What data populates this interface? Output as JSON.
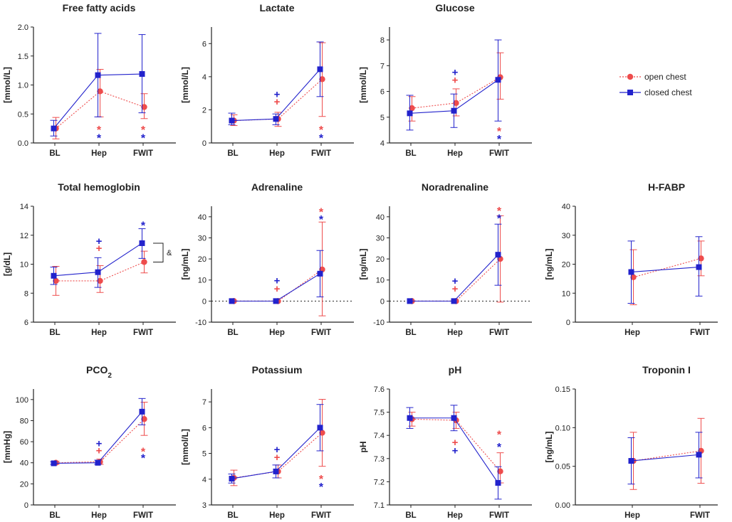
{
  "figure": {
    "legend": {
      "position": "top-right",
      "entries": [
        {
          "name": "open chest",
          "color": "#ee4c4c",
          "marker": "circle",
          "line": "dotted"
        },
        {
          "name": "closed chest",
          "color": "#2222cc",
          "marker": "square",
          "line": "solid"
        }
      ]
    },
    "bracket_label": "&"
  },
  "chart_data": [
    {
      "type": "line",
      "title": "Free fatty acids",
      "ylabel": "[mmol/L]",
      "categories": [
        "BL",
        "Hep",
        "FWIT"
      ],
      "ylim": [
        0,
        2.0
      ],
      "yticks": [
        "0.0",
        "0.5",
        "1.0",
        "1.5",
        "2.0"
      ],
      "series": [
        {
          "name": "open chest",
          "values": [
            0.25,
            0.89,
            0.62
          ],
          "err_low": [
            0.07,
            0.45,
            0.42
          ],
          "err_high": [
            0.44,
            1.27,
            0.85
          ]
        },
        {
          "name": "closed chest",
          "values": [
            0.25,
            1.17,
            1.19
          ],
          "err_low": [
            0.12,
            0.45,
            0.52
          ],
          "err_high": [
            0.39,
            1.89,
            1.87
          ]
        }
      ],
      "annotations": [
        {
          "ci": 1,
          "y": 0.27,
          "text": "*",
          "color": "#ee4c4c"
        },
        {
          "ci": 1,
          "y": 0.13,
          "text": "*",
          "color": "#2222cc"
        },
        {
          "ci": 2,
          "y": 0.27,
          "text": "*",
          "color": "#ee4c4c"
        },
        {
          "ci": 2,
          "y": 0.13,
          "text": "*",
          "color": "#2222cc"
        }
      ]
    },
    {
      "type": "line",
      "title": "Lactate",
      "ylabel": "[mmol/L]",
      "categories": [
        "BL",
        "Hep",
        "FWIT"
      ],
      "ylim": [
        0,
        7
      ],
      "yticks": [
        "0",
        "2",
        "4",
        "6"
      ],
      "series": [
        {
          "name": "open chest",
          "values": [
            1.35,
            1.45,
            3.85
          ],
          "err_low": [
            1.05,
            1.0,
            1.6
          ],
          "err_high": [
            1.7,
            1.85,
            6.05
          ]
        },
        {
          "name": "closed chest",
          "values": [
            1.35,
            1.45,
            4.45
          ],
          "err_low": [
            1.1,
            1.1,
            2.8
          ],
          "err_high": [
            1.8,
            1.75,
            6.1
          ]
        }
      ],
      "annotations": [
        {
          "ci": 1,
          "y": 2.95,
          "text": "+",
          "color": "#2222cc"
        },
        {
          "ci": 1,
          "y": 2.5,
          "text": "+",
          "color": "#ee4c4c"
        },
        {
          "ci": 2,
          "y": 0.95,
          "text": "*",
          "color": "#ee4c4c"
        },
        {
          "ci": 2,
          "y": 0.45,
          "text": "*",
          "color": "#2222cc"
        }
      ]
    },
    {
      "type": "line",
      "title": "Glucose",
      "ylabel": "[mmol/L]",
      "categories": [
        "BL",
        "Hep",
        "FWIT"
      ],
      "ylim": [
        4,
        8.5
      ],
      "yticks": [
        "4",
        "5",
        "6",
        "7",
        "8"
      ],
      "series": [
        {
          "name": "open chest",
          "values": [
            5.35,
            5.55,
            6.55
          ],
          "err_low": [
            4.85,
            5.05,
            5.7
          ],
          "err_high": [
            5.8,
            6.1,
            7.5
          ]
        },
        {
          "name": "closed chest",
          "values": [
            5.15,
            5.25,
            6.45
          ],
          "err_low": [
            4.5,
            4.6,
            4.85
          ],
          "err_high": [
            5.85,
            5.9,
            8.0
          ]
        }
      ],
      "annotations": [
        {
          "ci": 1,
          "y": 6.75,
          "text": "+",
          "color": "#2222cc"
        },
        {
          "ci": 1,
          "y": 6.45,
          "text": "+",
          "color": "#ee4c4c"
        },
        {
          "ci": 2,
          "y": 4.55,
          "text": "*",
          "color": "#ee4c4c"
        },
        {
          "ci": 2,
          "y": 4.25,
          "text": "*",
          "color": "#2222cc"
        }
      ]
    },
    {
      "type": "line",
      "title": "Total hemoglobin",
      "ylabel": "[g/dL]",
      "categories": [
        "BL",
        "Hep",
        "FWIT"
      ],
      "ylim": [
        6,
        14
      ],
      "yticks": [
        "6",
        "8",
        "10",
        "12",
        "14"
      ],
      "bracket": true,
      "series": [
        {
          "name": "open chest",
          "values": [
            8.85,
            8.85,
            10.15
          ],
          "err_low": [
            7.85,
            8.05,
            9.4
          ],
          "err_high": [
            9.85,
            9.9,
            10.9
          ]
        },
        {
          "name": "closed chest",
          "values": [
            9.2,
            9.45,
            11.45
          ],
          "err_low": [
            8.6,
            8.4,
            10.4
          ],
          "err_high": [
            9.8,
            10.45,
            12.45
          ]
        }
      ],
      "annotations": [
        {
          "ci": 1,
          "y": 11.6,
          "text": "+",
          "color": "#2222cc"
        },
        {
          "ci": 1,
          "y": 11.1,
          "text": "+",
          "color": "#ee4c4c"
        },
        {
          "ci": 2,
          "y": 12.85,
          "text": "*",
          "color": "#2222cc"
        }
      ]
    },
    {
      "type": "line",
      "title": "Adrenaline",
      "ylabel": "[ng/mL]",
      "categories": [
        "BL",
        "Hep",
        "FWIT"
      ],
      "ylim": [
        -10,
        45
      ],
      "yticks": [
        "-10",
        "0",
        "10",
        "20",
        "30",
        "40"
      ],
      "zero_line": true,
      "series": [
        {
          "name": "open chest",
          "values": [
            0,
            0,
            15
          ],
          "err_low": [
            0,
            0,
            -7
          ],
          "err_high": [
            0,
            0,
            37.5
          ]
        },
        {
          "name": "closed chest",
          "values": [
            0,
            0,
            13
          ],
          "err_low": [
            0,
            0,
            2
          ],
          "err_high": [
            0,
            0,
            24
          ]
        }
      ],
      "annotations": [
        {
          "ci": 1,
          "y": 9.8,
          "text": "+",
          "color": "#2222cc"
        },
        {
          "ci": 1,
          "y": 5.8,
          "text": "+",
          "color": "#ee4c4c"
        },
        {
          "ci": 2,
          "y": 43.5,
          "text": "*",
          "color": "#ee4c4c"
        },
        {
          "ci": 2,
          "y": 40,
          "text": "*",
          "color": "#2222cc"
        }
      ]
    },
    {
      "type": "line",
      "title": "Noradrenaline",
      "ylabel": "[ng/mL]",
      "categories": [
        "BL",
        "Hep",
        "FWIT"
      ],
      "ylim": [
        -10,
        45
      ],
      "yticks": [
        "-10",
        "0",
        "10",
        "20",
        "30",
        "40"
      ],
      "zero_line": true,
      "series": [
        {
          "name": "open chest",
          "values": [
            0,
            0,
            20
          ],
          "err_low": [
            0,
            0,
            -0.5
          ],
          "err_high": [
            0,
            0,
            40.5
          ]
        },
        {
          "name": "closed chest",
          "values": [
            0,
            0,
            22
          ],
          "err_low": [
            0,
            0,
            7.5
          ],
          "err_high": [
            0,
            0,
            36.5
          ]
        }
      ],
      "annotations": [
        {
          "ci": 1,
          "y": 9.5,
          "text": "+",
          "color": "#2222cc"
        },
        {
          "ci": 1,
          "y": 5.8,
          "text": "+",
          "color": "#ee4c4c"
        },
        {
          "ci": 2,
          "y": 44,
          "text": "*",
          "color": "#ee4c4c"
        },
        {
          "ci": 2,
          "y": 40.5,
          "text": "*",
          "color": "#2222cc"
        }
      ]
    },
    {
      "type": "line",
      "title": "H-FABP",
      "ylabel": "[ng/mL]",
      "categories": [
        "Hep",
        "FWIT"
      ],
      "ylim": [
        0,
        40
      ],
      "yticks": [
        "0",
        "10",
        "20",
        "30",
        "40"
      ],
      "series": [
        {
          "name": "open chest",
          "values": [
            15.5,
            22
          ],
          "err_low": [
            6,
            16
          ],
          "err_high": [
            25,
            28
          ]
        },
        {
          "name": "closed chest",
          "values": [
            17.3,
            19
          ],
          "err_low": [
            6.5,
            9
          ],
          "err_high": [
            28,
            29.5
          ]
        }
      ],
      "annotations": []
    },
    {
      "type": "line",
      "title": "PCO",
      "title_sub": "2",
      "ylabel": "[mmHg]",
      "categories": [
        "BL",
        "Hep",
        "FWIT"
      ],
      "ylim": [
        0,
        110
      ],
      "yticks": [
        "0",
        "20",
        "40",
        "60",
        "80",
        "100"
      ],
      "series": [
        {
          "name": "open chest",
          "values": [
            40,
            41,
            81.5
          ],
          "err_low": [
            38.5,
            38.5,
            66
          ],
          "err_high": [
            41.5,
            43.5,
            97.5
          ]
        },
        {
          "name": "closed chest",
          "values": [
            39.5,
            40,
            88.5
          ],
          "err_low": [
            38.5,
            38.5,
            76
          ],
          "err_high": [
            41,
            42.5,
            101
          ]
        }
      ],
      "annotations": [
        {
          "ci": 1,
          "y": 58.5,
          "text": "+",
          "color": "#2222cc"
        },
        {
          "ci": 1,
          "y": 51.5,
          "text": "+",
          "color": "#ee4c4c"
        },
        {
          "ci": 2,
          "y": 53,
          "text": "*",
          "color": "#ee4c4c"
        },
        {
          "ci": 2,
          "y": 47,
          "text": "*",
          "color": "#2222cc"
        }
      ]
    },
    {
      "type": "line",
      "title": "Potassium",
      "ylabel": "[mmol/L]",
      "categories": [
        "BL",
        "Hep",
        "FWIT"
      ],
      "ylim": [
        3,
        7.5
      ],
      "yticks": [
        "3",
        "4",
        "5",
        "6",
        "7"
      ],
      "series": [
        {
          "name": "open chest",
          "values": [
            4.05,
            4.3,
            5.8
          ],
          "err_low": [
            3.75,
            4.05,
            4.5
          ],
          "err_high": [
            4.35,
            4.55,
            7.1
          ]
        },
        {
          "name": "closed chest",
          "values": [
            4.02,
            4.3,
            6.0
          ],
          "err_low": [
            3.85,
            4.05,
            5.1
          ],
          "err_high": [
            4.2,
            4.55,
            6.9
          ]
        }
      ],
      "annotations": [
        {
          "ci": 1,
          "y": 5.15,
          "text": "+",
          "color": "#2222cc"
        },
        {
          "ci": 1,
          "y": 4.85,
          "text": "+",
          "color": "#ee4c4c"
        },
        {
          "ci": 2,
          "y": 4.1,
          "text": "*",
          "color": "#ee4c4c"
        },
        {
          "ci": 2,
          "y": 3.8,
          "text": "*",
          "color": "#2222cc"
        }
      ]
    },
    {
      "type": "line",
      "title": "pH",
      "ylabel": "pH",
      "categories": [
        "BL",
        "Hep",
        "FWIT"
      ],
      "ylim": [
        7.1,
        7.6
      ],
      "yticks": [
        "7.1",
        "7.2",
        "7.3",
        "7.4",
        "7.5",
        "7.6"
      ],
      "series": [
        {
          "name": "open chest",
          "values": [
            7.47,
            7.465,
            7.245
          ],
          "err_low": [
            7.44,
            7.43,
            7.195
          ],
          "err_high": [
            7.5,
            7.5,
            7.325
          ]
        },
        {
          "name": "closed chest",
          "values": [
            7.475,
            7.475,
            7.195
          ],
          "err_low": [
            7.43,
            7.42,
            7.125
          ],
          "err_high": [
            7.52,
            7.53,
            7.265
          ]
        }
      ],
      "annotations": [
        {
          "ci": 1,
          "y": 7.37,
          "text": "+",
          "color": "#ee4c4c"
        },
        {
          "ci": 1,
          "y": 7.335,
          "text": "+",
          "color": "#2222cc"
        },
        {
          "ci": 2,
          "y": 7.415,
          "text": "*",
          "color": "#ee4c4c"
        },
        {
          "ci": 2,
          "y": 7.36,
          "text": "*",
          "color": "#2222cc"
        }
      ]
    },
    {
      "type": "line",
      "title": "Troponin I",
      "ylabel": "[ng/mL]",
      "categories": [
        "Hep",
        "FWIT"
      ],
      "ylim": [
        0,
        0.15
      ],
      "yticks": [
        "0.00",
        "0.05",
        "0.10",
        "0.15"
      ],
      "series": [
        {
          "name": "open chest",
          "values": [
            0.057,
            0.07
          ],
          "err_low": [
            0.02,
            0.028
          ],
          "err_high": [
            0.094,
            0.112
          ]
        },
        {
          "name": "closed chest",
          "values": [
            0.057,
            0.065
          ],
          "err_low": [
            0.027,
            0.035
          ],
          "err_high": [
            0.087,
            0.094
          ]
        }
      ],
      "annotations": []
    }
  ]
}
